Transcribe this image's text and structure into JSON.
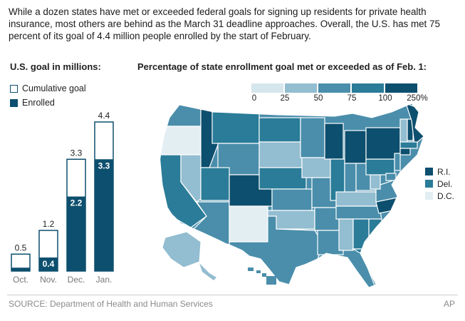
{
  "intro_text": "While a dozen states have met or exceeded federal goals for signing up residents for private health insurance, most others are behind as the March 31 deadline approaches. Overall, the U.S. has met 75 percent of its goal of 4.4 million people enrolled by the start of February.",
  "left_heading": "U.S. goal in millions:",
  "right_heading": "Percentage of state enrollment goal met or exceeded as of Feb. 1:",
  "legend": {
    "cumulative_goal": "Cumulative goal",
    "enrolled": "Enrolled"
  },
  "source": "SOURCE: Department of Health and Human Services",
  "credit": "AP",
  "colors": {
    "dark": "#0d4f6e",
    "mid_dark": "#2a7c98",
    "mid": "#4a8eab",
    "light": "#93bdd0",
    "pale": "#e3eef3"
  },
  "chart_data": [
    {
      "type": "bar",
      "title": "U.S. goal in millions:",
      "categories": [
        "Oct.",
        "Nov.",
        "Dec.",
        "Jan."
      ],
      "series": [
        {
          "name": "Cumulative goal",
          "values": [
            0.5,
            1.2,
            3.3,
            4.4
          ],
          "labels": [
            "0.5",
            "1.2",
            "3.3",
            "4.4"
          ]
        },
        {
          "name": "Enrolled",
          "values": [
            0.1,
            0.4,
            2.2,
            3.3
          ],
          "labels": [
            "",
            "0.4",
            "2.2",
            "3.3"
          ]
        }
      ],
      "ylim": [
        0,
        4.4
      ]
    },
    {
      "type": "heatmap",
      "title": "Percentage of state enrollment goal met or exceeded as of Feb. 1:",
      "scale_ticks": [
        "0",
        "25",
        "50",
        "75",
        "100",
        "250%"
      ],
      "small_states": [
        {
          "label": "R.I.",
          "color": "#0d4f6e"
        },
        {
          "label": "Del.",
          "color": "#2a7c98"
        },
        {
          "label": "D.C.",
          "color": "#e3eef3"
        }
      ]
    }
  ]
}
